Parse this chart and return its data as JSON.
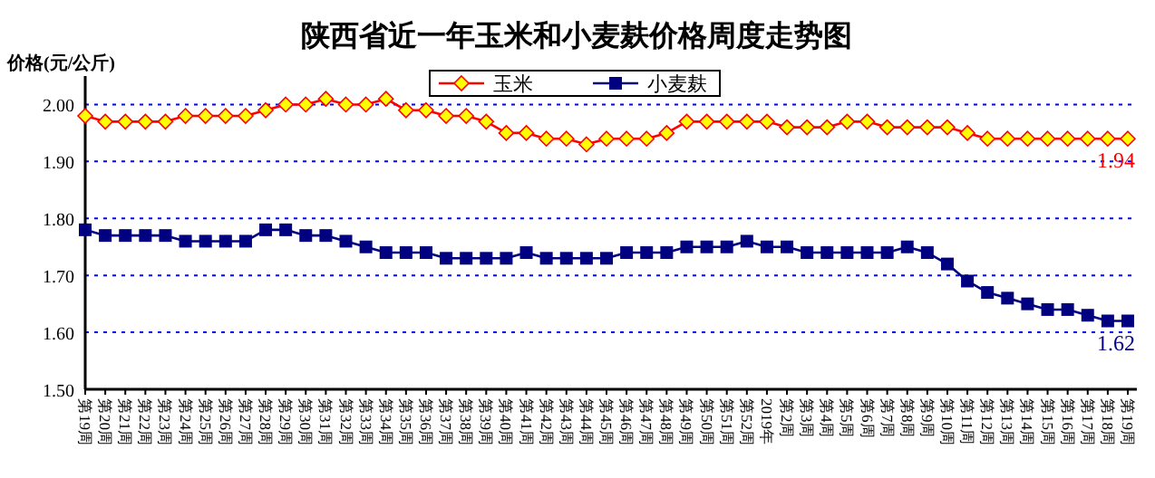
{
  "chart_data": {
    "type": "line",
    "title": "陕西省近一年玉米和小麦麸价格周度走势图",
    "ylabel": "价格(元/公斤)",
    "categories": [
      "第19周",
      "第20周",
      "第21周",
      "第22周",
      "第23周",
      "第24周",
      "第25周",
      "第26周",
      "第27周",
      "第28周",
      "第29周",
      "第30周",
      "第31周",
      "第32周",
      "第33周",
      "第34周",
      "第35周",
      "第36周",
      "第37周",
      "第38周",
      "第39周",
      "第40周",
      "第41周",
      "第42周",
      "第43周",
      "第44周",
      "第45周",
      "第46周",
      "第47周",
      "第48周",
      "第49周",
      "第50周",
      "第51周",
      "第52周",
      "2019年",
      "第2周",
      "第3周",
      "第4周",
      "第5周",
      "第6周",
      "第7周",
      "第8周",
      "第9周",
      "第10周",
      "第11周",
      "第12周",
      "第13周",
      "第14周",
      "第15周",
      "第16周",
      "第17周",
      "第18周",
      "第19周"
    ],
    "series": [
      {
        "name": "玉米",
        "color": "#ff0000",
        "marker": "diamond",
        "values": [
          1.98,
          1.97,
          1.97,
          1.97,
          1.97,
          1.98,
          1.98,
          1.98,
          1.98,
          1.99,
          2.0,
          2.0,
          2.01,
          2.0,
          2.0,
          2.01,
          1.99,
          1.99,
          1.98,
          1.98,
          1.97,
          1.95,
          1.95,
          1.94,
          1.94,
          1.93,
          1.94,
          1.94,
          1.94,
          1.95,
          1.97,
          1.97,
          1.97,
          1.97,
          1.97,
          1.96,
          1.96,
          1.96,
          1.97,
          1.97,
          1.96,
          1.96,
          1.96,
          1.96,
          1.95,
          1.94,
          1.94,
          1.94,
          1.94,
          1.94,
          1.94,
          1.94,
          1.94
        ],
        "value_labels": [
          null,
          null,
          null,
          null,
          null,
          null,
          null,
          null,
          null,
          null,
          null,
          null,
          null,
          null,
          null,
          null,
          null,
          null,
          null,
          null,
          null,
          null,
          null,
          null,
          null,
          null,
          null,
          null,
          null,
          null,
          null,
          null,
          null,
          null,
          null,
          null,
          null,
          null,
          null,
          null,
          null,
          null,
          null,
          null,
          null,
          null,
          null,
          null,
          null,
          null,
          null,
          null,
          "1.94"
        ]
      },
      {
        "name": "小麦麸",
        "color": "#000080",
        "marker": "square",
        "values": [
          1.78,
          1.77,
          1.77,
          1.77,
          1.77,
          1.76,
          1.76,
          1.76,
          1.76,
          1.78,
          1.78,
          1.77,
          1.77,
          1.76,
          1.75,
          1.74,
          1.74,
          1.74,
          1.73,
          1.73,
          1.73,
          1.73,
          1.74,
          1.73,
          1.73,
          1.73,
          1.73,
          1.74,
          1.74,
          1.74,
          1.75,
          1.75,
          1.75,
          1.76,
          1.75,
          1.75,
          1.74,
          1.74,
          1.74,
          1.74,
          1.74,
          1.75,
          1.74,
          1.72,
          1.69,
          1.67,
          1.66,
          1.65,
          1.64,
          1.64,
          1.63,
          1.62,
          1.62
        ],
        "value_labels": [
          null,
          null,
          null,
          null,
          null,
          null,
          null,
          null,
          null,
          null,
          null,
          null,
          null,
          null,
          null,
          null,
          null,
          null,
          null,
          null,
          null,
          null,
          null,
          null,
          null,
          null,
          null,
          null,
          null,
          null,
          null,
          null,
          null,
          null,
          null,
          null,
          null,
          null,
          null,
          null,
          null,
          null,
          null,
          null,
          null,
          null,
          null,
          null,
          null,
          null,
          null,
          null,
          "1.62"
        ]
      }
    ],
    "ylim": [
      1.5,
      2.05
    ],
    "yticks": [
      {
        "value": 1.5,
        "label": "1.50"
      },
      {
        "value": 1.6,
        "label": "1.60"
      },
      {
        "value": 1.7,
        "label": "1.70"
      },
      {
        "value": 1.8,
        "label": "1.80"
      },
      {
        "value": 1.9,
        "label": "1.90"
      },
      {
        "value": 2.0,
        "label": "2.00"
      }
    ],
    "grid": "y",
    "legend": "top"
  }
}
